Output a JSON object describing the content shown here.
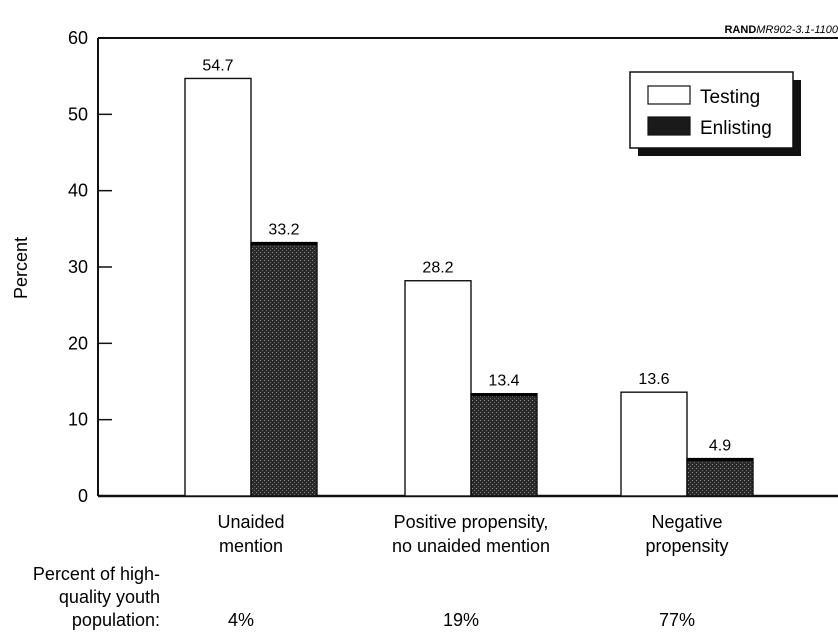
{
  "source_tag": {
    "org": "RAND",
    "id": "MR902-3.1-1100"
  },
  "chart_data": {
    "type": "bar",
    "title": "",
    "xlabel": "",
    "ylabel": "Percent",
    "ylim": [
      0,
      60
    ],
    "yticks": [
      0,
      10,
      20,
      30,
      40,
      50,
      60
    ],
    "categories": [
      [
        "Unaided",
        "mention"
      ],
      [
        "Positive propensity,",
        "no unaided mention"
      ],
      [
        "Negative",
        "propensity"
      ]
    ],
    "series": [
      {
        "name": "Testing",
        "values": [
          54.7,
          28.2,
          13.6
        ],
        "color": "#ffffff"
      },
      {
        "name": "Enlisting",
        "values": [
          33.2,
          13.4,
          4.9
        ],
        "color": "#1a1a1a"
      }
    ],
    "value_labels": [
      [
        "54.7",
        "28.2",
        "13.6"
      ],
      [
        "33.2",
        "13.4",
        "4.9"
      ]
    ],
    "legend_position": "top-right",
    "grid": false,
    "population_label": [
      "Percent of high-",
      "quality youth",
      "population:"
    ],
    "population_values": [
      "4%",
      "19%",
      "77%"
    ]
  }
}
